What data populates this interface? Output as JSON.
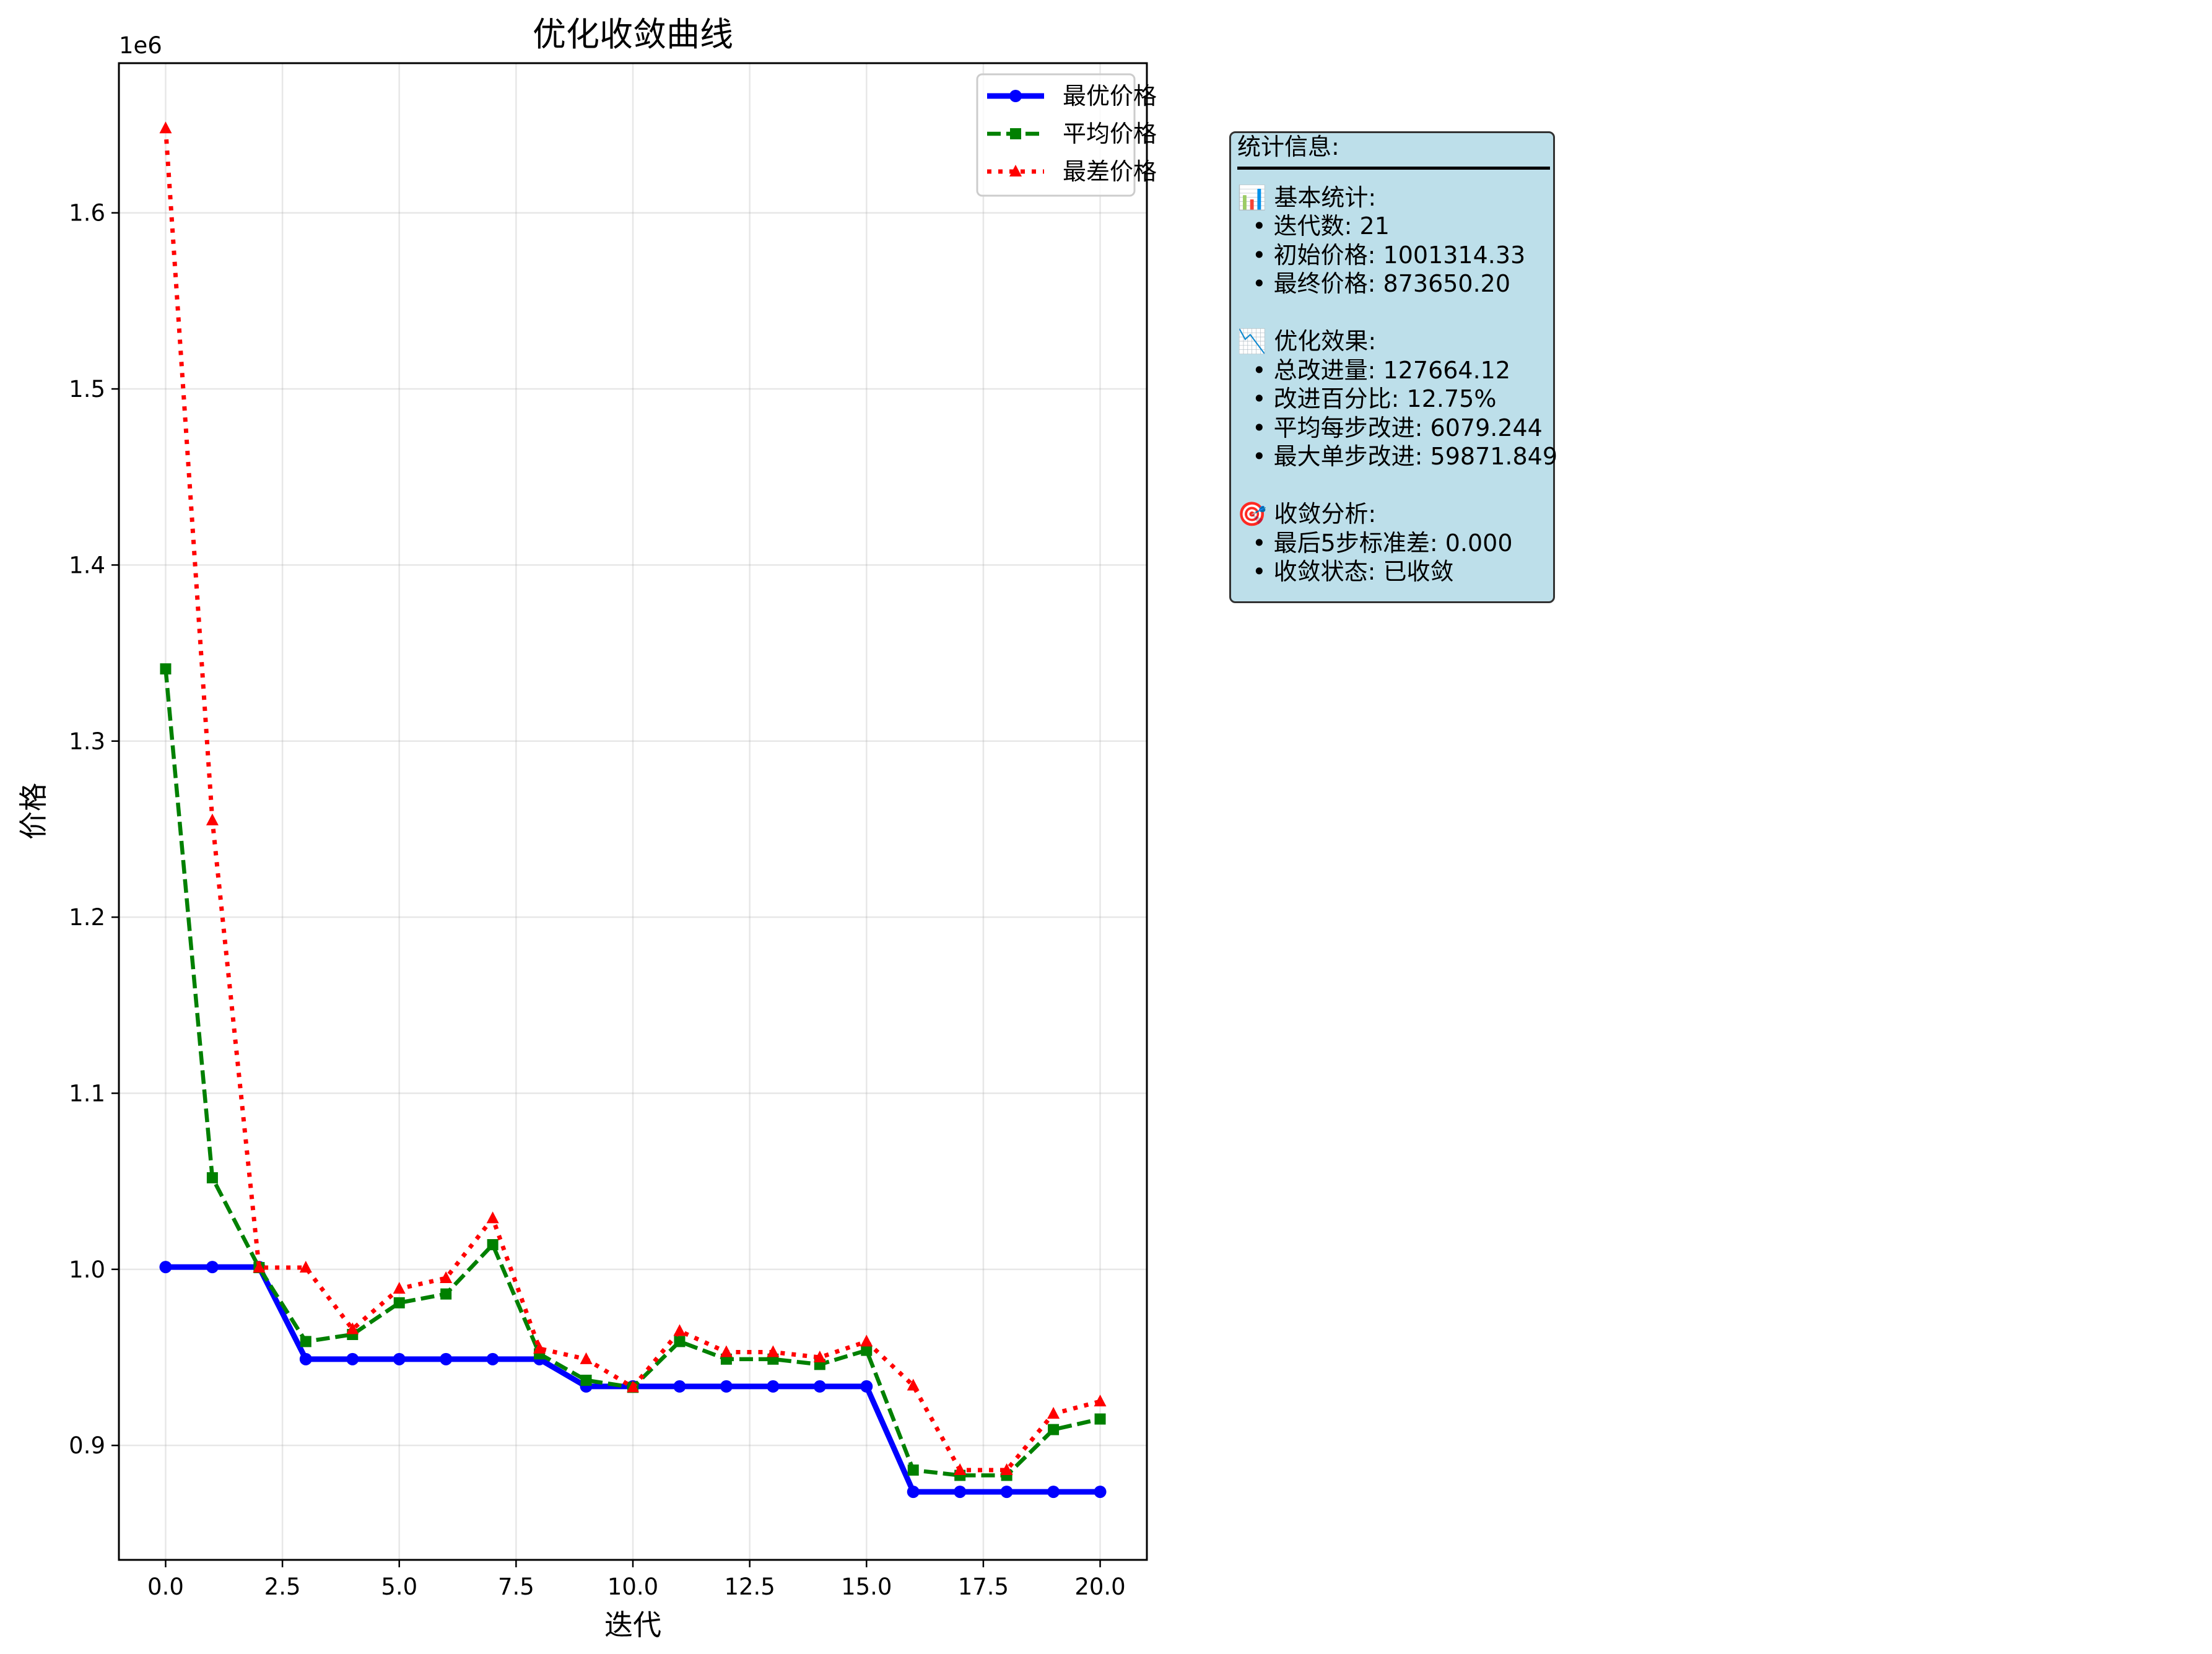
{
  "chart_data": {
    "type": "line",
    "title": "优化收敛曲线",
    "xlabel": "迭代",
    "ylabel": "价格",
    "offset_text": "1e6",
    "xlim": [
      -1.0,
      21.0
    ],
    "ylim": [
      835000,
      1685000
    ],
    "x_ticks": [
      0,
      2.5,
      5,
      7.5,
      10,
      12.5,
      15,
      17.5,
      20
    ],
    "x_tick_labels": [
      "0.0",
      "2.5",
      "5.0",
      "7.5",
      "10.0",
      "12.5",
      "15.0",
      "17.5",
      "20.0"
    ],
    "y_ticks": [
      900000,
      1000000,
      1100000,
      1200000,
      1300000,
      1400000,
      1500000,
      1600000
    ],
    "y_tick_labels": [
      "0.9",
      "1.0",
      "1.1",
      "1.2",
      "1.3",
      "1.4",
      "1.5",
      "1.6"
    ],
    "grid": true,
    "legend_position": "top-right",
    "x": [
      0,
      1,
      2,
      3,
      4,
      5,
      6,
      7,
      8,
      9,
      10,
      11,
      12,
      13,
      14,
      15,
      16,
      17,
      18,
      19,
      20
    ],
    "series": [
      {
        "name": "最优价格",
        "color": "#0000ff",
        "line_style": "solid",
        "marker": "circle",
        "values": [
          1001314,
          1001314,
          1001314,
          949000,
          949000,
          949000,
          949000,
          949000,
          949000,
          933500,
          933500,
          933500,
          933500,
          933500,
          933500,
          933500,
          873650,
          873650,
          873650,
          873650,
          873650
        ]
      },
      {
        "name": "平均价格",
        "color": "#008000",
        "line_style": "dashed",
        "marker": "square",
        "values": [
          1341000,
          1052000,
          1001000,
          959000,
          963000,
          981000,
          986000,
          1014000,
          952000,
          937000,
          933000,
          959000,
          949000,
          949000,
          946000,
          954000,
          886000,
          883000,
          883000,
          909000,
          915000
        ]
      },
      {
        "name": "最差价格",
        "color": "#ff0000",
        "line_style": "dotted",
        "marker": "triangle",
        "values": [
          1648000,
          1255000,
          1001000,
          1001000,
          966000,
          989000,
          995000,
          1029000,
          955000,
          949000,
          933000,
          965000,
          953000,
          953000,
          950000,
          959000,
          934000,
          886000,
          886000,
          918000,
          925000
        ]
      }
    ]
  },
  "info_panel": {
    "title": "统计信息:",
    "lines": [
      "📊 基本统计:",
      "  • 迭代数: 21",
      "  • 初始价格: 1001314.33",
      "  • 最终价格: 873650.20",
      "",
      "📉 优化效果:",
      "  • 总改进量: 127664.12",
      "  • 改进百分比: 12.75%",
      "  • 平均每步改进: 6079.244",
      "  • 最大单步改进: 59871.849",
      "",
      "🎯 收敛分析:",
      "  • 最后5步标准差: 0.000",
      "  • 收敛状态: 已收敛"
    ]
  }
}
